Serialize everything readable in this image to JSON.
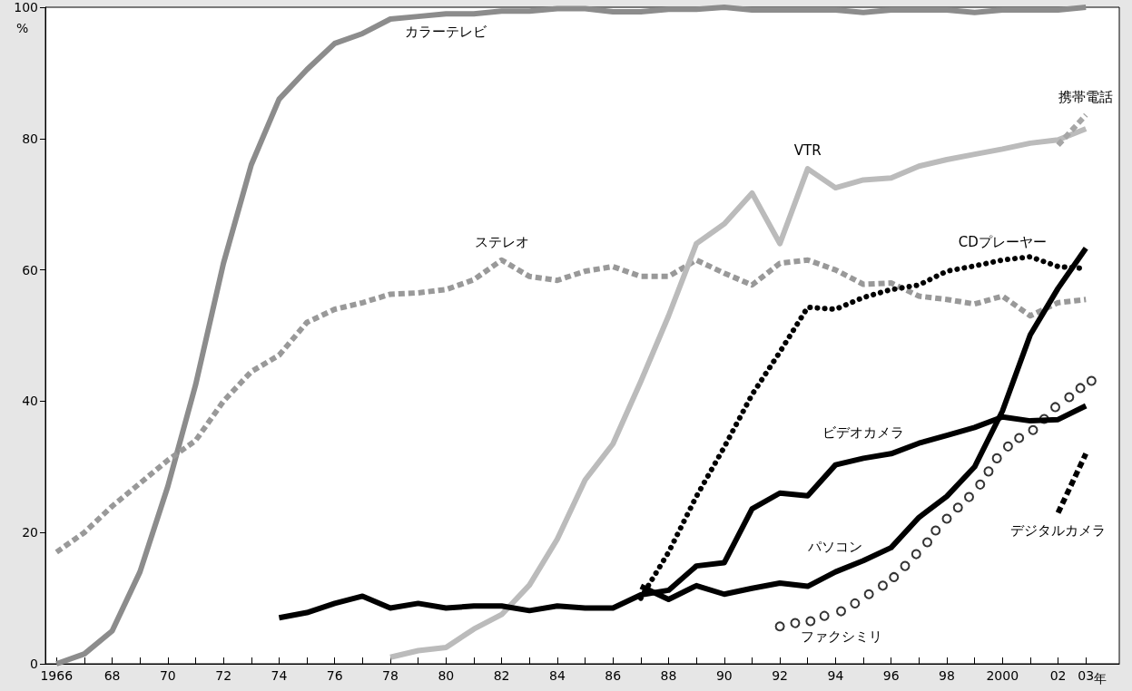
{
  "chart_data": {
    "type": "line",
    "ylabel": "%",
    "xlim": [
      1965.6,
      2004.2
    ],
    "ylim": [
      0,
      100
    ],
    "xticks": [
      {
        "value": 1966,
        "label": "1966"
      },
      {
        "value": 1967,
        "label": null
      },
      {
        "value": 1968,
        "label": "68"
      },
      {
        "value": 1969,
        "label": null
      },
      {
        "value": 1970,
        "label": "70"
      },
      {
        "value": 1971,
        "label": null
      },
      {
        "value": 1972,
        "label": "72"
      },
      {
        "value": 1973,
        "label": null
      },
      {
        "value": 1974,
        "label": "74"
      },
      {
        "value": 1975,
        "label": null
      },
      {
        "value": 1976,
        "label": "76"
      },
      {
        "value": 1977,
        "label": null
      },
      {
        "value": 1978,
        "label": "78"
      },
      {
        "value": 1979,
        "label": null
      },
      {
        "value": 1980,
        "label": "80"
      },
      {
        "value": 1981,
        "label": null
      },
      {
        "value": 1982,
        "label": "82"
      },
      {
        "value": 1983,
        "label": null
      },
      {
        "value": 1984,
        "label": "84"
      },
      {
        "value": 1985,
        "label": null
      },
      {
        "value": 1986,
        "label": "86"
      },
      {
        "value": 1987,
        "label": null
      },
      {
        "value": 1988,
        "label": "88"
      },
      {
        "value": 1989,
        "label": null
      },
      {
        "value": 1990,
        "label": "90"
      },
      {
        "value": 1991,
        "label": null
      },
      {
        "value": 1992,
        "label": "92"
      },
      {
        "value": 1993,
        "label": null
      },
      {
        "value": 1994,
        "label": "94"
      },
      {
        "value": 1995,
        "label": null
      },
      {
        "value": 1996,
        "label": "96"
      },
      {
        "value": 1997,
        "label": null
      },
      {
        "value": 1998,
        "label": "98"
      },
      {
        "value": 1999,
        "label": null
      },
      {
        "value": 2000,
        "label": "2000"
      },
      {
        "value": 2001,
        "label": null
      },
      {
        "value": 2002,
        "label": "02"
      },
      {
        "value": 2003,
        "label": "03"
      }
    ],
    "xlabel": "年",
    "yticks": [
      0,
      20,
      40,
      60,
      80,
      100
    ],
    "grid": false,
    "marker": "none",
    "series": [
      {
        "color": "#8c8c8c",
        "line_style": "solid",
        "x": [
          1966,
          1967,
          1968,
          1969,
          1970,
          1971,
          1972,
          1973,
          1974,
          1975,
          1976,
          1977,
          1978,
          1979,
          1980,
          1981,
          1982,
          1983,
          1984,
          1985,
          1986,
          1987,
          1988,
          1989,
          1990,
          1991,
          1992,
          1993,
          1994,
          1995,
          1996,
          1997,
          1998,
          1999,
          2000,
          2001,
          2002,
          2003
        ],
        "values": [
          0,
          1.5,
          5,
          14,
          27,
          42.5,
          61,
          76,
          86,
          90.5,
          94.5,
          96,
          98.2,
          98.6,
          99,
          99,
          99.4,
          99.4,
          99.8,
          99.8,
          99.3,
          99.3,
          99.7,
          99.7,
          100,
          99.6,
          99.6,
          99.6,
          99.6,
          99.2,
          99.6,
          99.6,
          99.6,
          99.2,
          99.6,
          99.6,
          99.6,
          100
        ]
      },
      {
        "color": "#999999",
        "line_style": "dashed",
        "x": [
          1966,
          1967,
          1968,
          1969,
          1970,
          1971,
          1972,
          1973,
          1974,
          1975,
          1976,
          1977,
          1978,
          1979,
          1980,
          1981,
          1982,
          1983,
          1984,
          1985,
          1986,
          1987,
          1988,
          1989,
          1990,
          1991,
          1992,
          1993,
          1994,
          1995,
          1996,
          1997,
          1998,
          1999,
          2000,
          2001,
          2002,
          2003
        ],
        "values": [
          17,
          20,
          24,
          27.5,
          31,
          34,
          40,
          44.5,
          47,
          52,
          54,
          55,
          56.3,
          56.5,
          57,
          58.5,
          61.5,
          59,
          58.4,
          59.8,
          60.5,
          59,
          59,
          61.5,
          59.5,
          57.7,
          61,
          61.5,
          60,
          57.8,
          58,
          56,
          55.5,
          54.8,
          56,
          53,
          55,
          55.5
        ]
      },
      {
        "color": "#bbbbbb",
        "line_style": "solid",
        "x": [
          1978,
          1979,
          1980,
          1981,
          1982,
          1983,
          1984,
          1985,
          1986,
          1987,
          1988,
          1989,
          1990,
          1991,
          1992,
          1993,
          1994,
          1995,
          1996,
          1997,
          1998,
          1999,
          2000,
          2001,
          2002,
          2003
        ],
        "values": [
          1,
          2,
          2.5,
          5.3,
          7.5,
          12,
          19,
          28,
          33.5,
          43,
          53,
          64,
          67,
          71.7,
          64,
          75.4,
          72.5,
          73.7,
          74,
          75.8,
          76.8,
          77.6,
          78.4,
          79.3,
          79.8,
          81.5
        ]
      },
      {
        "color": "#a6a6a6",
        "line_style": "dashed",
        "x": [
          2002,
          2003
        ],
        "values": [
          79,
          83.6
        ]
      },
      {
        "color": "#000000",
        "line_style": "solid",
        "x": [
          1974,
          1975,
          1976,
          1977,
          1978,
          1979,
          1980,
          1981,
          1982,
          1983,
          1984,
          1985,
          1986,
          1987,
          1988,
          1989,
          1990,
          1991,
          1992,
          1993,
          1994,
          1995,
          1996,
          1997,
          1998,
          1999,
          2000,
          2001,
          2002,
          2003
        ],
        "values": [
          7,
          7.8,
          9.2,
          10.3,
          8.5,
          9.2,
          8.5,
          8.8,
          8.8,
          8.1,
          8.8,
          8.5,
          8.5,
          10.5,
          11.2,
          14.9,
          15.4,
          23.6,
          26,
          25.6,
          30.3,
          31.3,
          32,
          33.6,
          34.8,
          36,
          37.6,
          37,
          37.2,
          39.3
        ]
      },
      {
        "type": "scatter",
        "marker": "circle",
        "color": "#000000",
        "x": [
          1992.0,
          1992.55,
          1993.1,
          1993.6,
          1994.2,
          1994.7,
          1995.2,
          1995.7,
          1996.1,
          1996.5,
          1996.9,
          1997.3,
          1997.6,
          1998.0,
          1998.4,
          1998.8,
          1999.2,
          1999.5,
          1999.8,
          2000.2,
          2000.6,
          2001.1,
          2001.5,
          2001.9,
          2002.4,
          2002.8,
          2003.2
        ],
        "values": [
          5.7,
          6.2,
          6.5,
          7.3,
          8.0,
          9.2,
          10.6,
          11.9,
          13.2,
          14.9,
          16.7,
          18.5,
          20.3,
          22.1,
          23.8,
          25.4,
          27.3,
          29.3,
          31.3,
          33.1,
          34.4,
          35.6,
          37.3,
          39.1,
          40.6,
          42,
          43.1
        ]
      },
      {
        "color": "#000000",
        "line_style": "dotted",
        "x": [
          1987,
          1988,
          1989,
          1990,
          1991,
          1992,
          1993,
          1994,
          1995,
          1996,
          1997,
          1998,
          1999,
          2000,
          2001,
          2002,
          2003
        ],
        "values": [
          10,
          17,
          25.5,
          33,
          41,
          47.5,
          54.3,
          54,
          55.8,
          57,
          57.7,
          59.8,
          60.6,
          61.5,
          62,
          60.5,
          60.2
        ]
      },
      {
        "color": "#000000",
        "line_style": "solid",
        "x": [
          1987,
          1988,
          1989,
          1990,
          1991,
          1992,
          1993,
          1994,
          1995,
          1996,
          1997,
          1998,
          1999,
          2000,
          2001,
          2002,
          2003
        ],
        "values": [
          11.8,
          9.8,
          11.9,
          10.6,
          11.5,
          12.3,
          11.8,
          14,
          15.7,
          17.7,
          22.3,
          25.5,
          30,
          38.5,
          50.1,
          57.2,
          63.3
        ]
      },
      {
        "color": "#000000",
        "line_style": "dashed",
        "x": [
          2002,
          2003
        ],
        "values": [
          23,
          32
        ]
      }
    ],
    "annotations": [
      {
        "text": "カラーテレビ",
        "x": 1980,
        "y": 99
      },
      {
        "text": "ステレオ",
        "x": 1982,
        "y": 61.5
      },
      {
        "text": "VTR",
        "x": 1993,
        "y": 75.4
      },
      {
        "text": "CDプレーヤー",
        "x": 2000,
        "y": 61.5
      },
      {
        "text": "携帯電話",
        "x": 2003,
        "y": 83.6
      },
      {
        "text": "ビデオカメラ",
        "x": 1995,
        "y": 31.3
      },
      {
        "text": "パソコン",
        "x": 1994,
        "y": 14
      },
      {
        "text": "ファクシミリ",
        "x": 1994.2,
        "y": 8.0
      },
      {
        "text": "デジタルカメラ",
        "x": 2002,
        "y": 23
      }
    ]
  }
}
